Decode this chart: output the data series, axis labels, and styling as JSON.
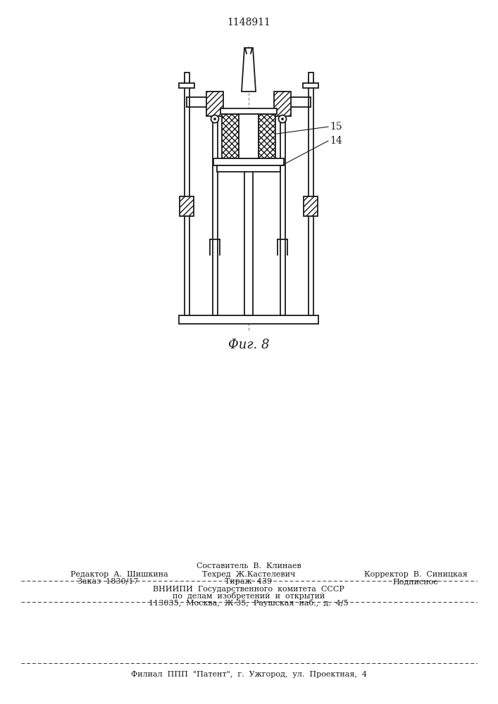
{
  "title": "1148911",
  "fig_label": "Φиг. 8",
  "label_15": "15",
  "label_14": "14",
  "bg_color": "#ffffff",
  "line_color": "#1a1a1a",
  "footer_sestavitel": "Составитель  В.  Клинаев",
  "footer_redaktor": "Редактор  А.  Шишкина",
  "footer_tehred": "Техред  Ж.Кастелевич",
  "footer_korrektor": "Корректор  В.  Синицкая",
  "footer_zakaz": "Заказ  1830/17",
  "footer_tirazh": "Тираж  439",
  "footer_podpisnoe": "Подписное",
  "footer_vniipи": "ВНИИПИ  Государственного  комитета  СССР",
  "footer_po_delam": "по  делам  изобретений  и  открытий",
  "footer_moskva": "113035,  Москва,  Ж-35,  Раушская  наб.,  д.  4/5",
  "footer_filial": "Филиал  ППП  \"Патент\",  г.  Ужгород,  ул.  Проектная,  4"
}
